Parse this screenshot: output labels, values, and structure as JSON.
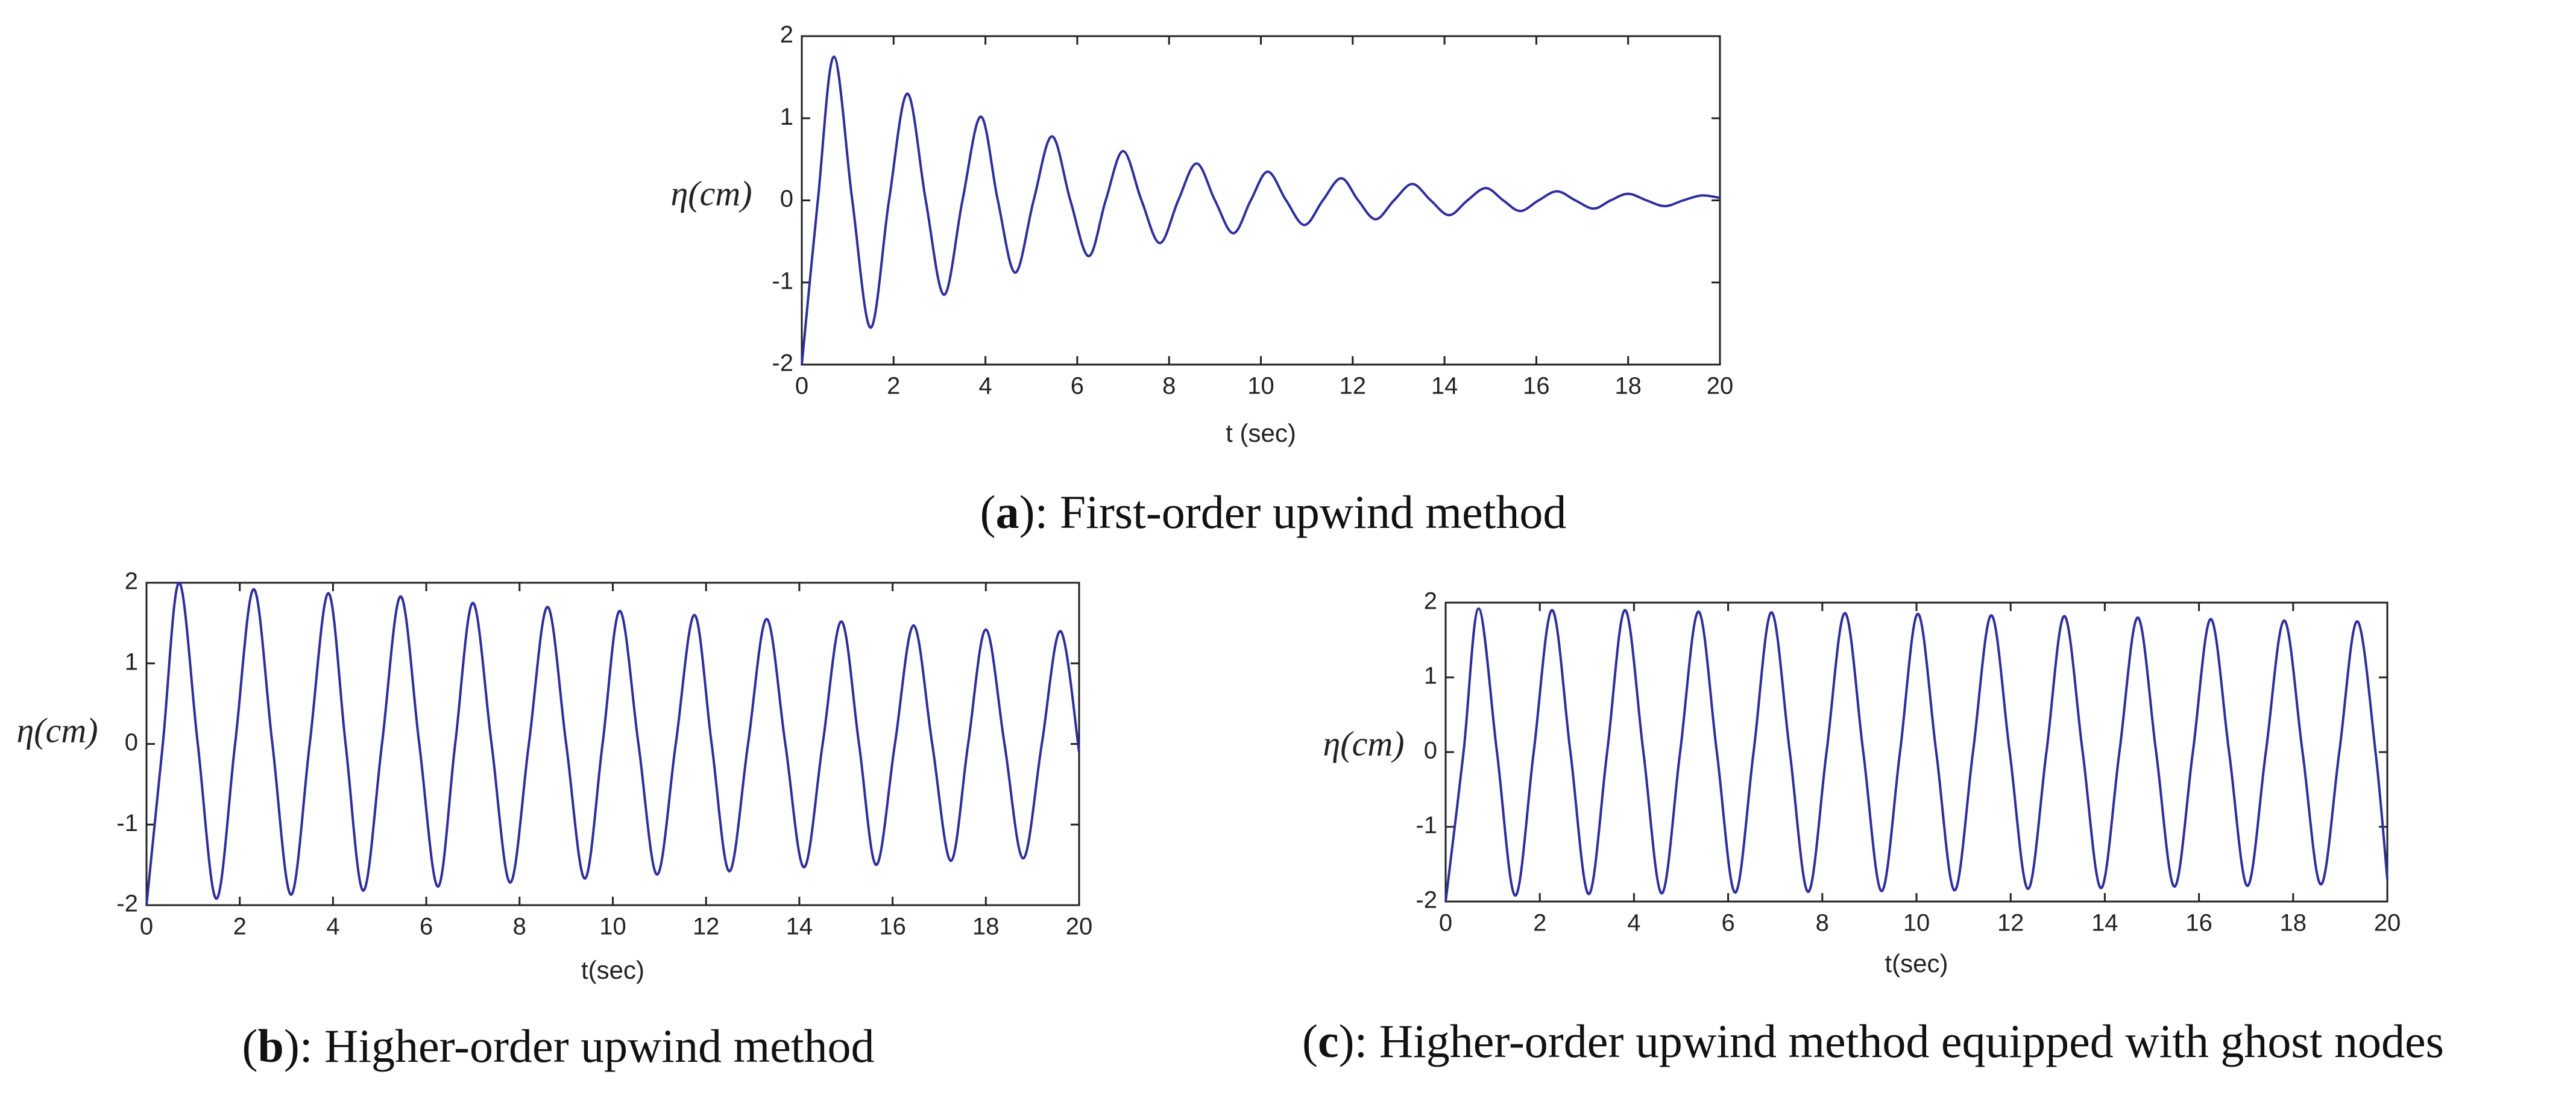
{
  "chart_data": [
    {
      "type": "line",
      "y_label": "η(cm)",
      "x_label": "t (sec)",
      "caption": {
        "open": "(",
        "label": "a",
        "text": "): First-order upwind method"
      },
      "xlim": [
        0,
        20
      ],
      "ylim": [
        -2,
        2
      ],
      "xticks": [
        0,
        2,
        4,
        6,
        8,
        10,
        12,
        14,
        16,
        18,
        20
      ],
      "yticks": [
        -2,
        -1,
        0,
        1,
        2
      ],
      "x": [
        0,
        0.35,
        0.7,
        1.1,
        1.5,
        1.9,
        2.3,
        2.7,
        3.1,
        3.5,
        3.9,
        4.27,
        4.65,
        5.05,
        5.45,
        5.85,
        6.25,
        6.62,
        7.0,
        7.4,
        7.8,
        8.2,
        8.6,
        9.0,
        9.4,
        9.78,
        10.15,
        10.55,
        10.95,
        11.35,
        11.75,
        12.12,
        12.5,
        12.9,
        13.3,
        13.7,
        14.1,
        14.5,
        14.9,
        15.28,
        15.65,
        16.05,
        16.45,
        16.85,
        17.25,
        17.62,
        18.0,
        18.4,
        18.8,
        19.2,
        19.6,
        20
      ],
      "series": [
        {
          "color": "#2e2e9c",
          "values": [
            -2,
            0,
            1.75,
            0,
            -1.55,
            0,
            1.3,
            0,
            -1.15,
            0,
            1.02,
            0,
            -0.88,
            0,
            0.78,
            0,
            -0.68,
            0,
            0.6,
            0,
            -0.52,
            0,
            0.45,
            0,
            -0.4,
            0,
            0.35,
            0,
            -0.3,
            0,
            0.27,
            0,
            -0.23,
            0,
            0.2,
            0,
            -0.18,
            0,
            0.15,
            0,
            -0.13,
            0,
            0.11,
            0,
            -0.1,
            0,
            0.08,
            0,
            -0.07,
            0,
            0.06,
            0.03
          ]
        }
      ]
    },
    {
      "type": "line",
      "y_label": "η(cm)",
      "x_label": "t(sec)",
      "caption": {
        "open": "(",
        "label": "b",
        "text": "): Higher-order upwind method"
      },
      "xlim": [
        0,
        20
      ],
      "ylim": [
        -2,
        2
      ],
      "xticks": [
        0,
        2,
        4,
        6,
        8,
        10,
        12,
        14,
        16,
        18,
        20
      ],
      "yticks": [
        -2,
        -1,
        0,
        1,
        2
      ],
      "x": [
        0,
        0.35,
        0.7,
        1.1,
        1.5,
        1.9,
        2.3,
        2.7,
        3.1,
        3.5,
        3.9,
        4.27,
        4.65,
        5.05,
        5.45,
        5.85,
        6.25,
        6.62,
        7.0,
        7.4,
        7.8,
        8.2,
        8.6,
        9.0,
        9.4,
        9.78,
        10.15,
        10.55,
        10.95,
        11.35,
        11.75,
        12.12,
        12.5,
        12.9,
        13.3,
        13.7,
        14.1,
        14.5,
        14.9,
        15.28,
        15.65,
        16.05,
        16.45,
        16.85,
        17.25,
        17.62,
        18.0,
        18.4,
        18.8,
        19.2,
        19.6,
        20
      ],
      "series": [
        {
          "color": "#2e2e9c",
          "values": [
            -2,
            0,
            2,
            0,
            -1.92,
            0,
            1.92,
            0,
            -1.87,
            0,
            1.87,
            0,
            -1.82,
            0,
            1.83,
            0,
            -1.77,
            0,
            1.75,
            0,
            -1.72,
            0,
            1.7,
            0,
            -1.67,
            0,
            1.65,
            0,
            -1.62,
            0,
            1.6,
            0,
            -1.58,
            0,
            1.55,
            0,
            -1.53,
            0,
            1.52,
            0,
            -1.5,
            0,
            1.47,
            0,
            -1.45,
            0,
            1.42,
            0,
            -1.42,
            0,
            1.4,
            -0.1
          ]
        }
      ]
    },
    {
      "type": "line",
      "y_label": "η(cm)",
      "x_label": "t(sec)",
      "caption": {
        "open": "(",
        "label": "c",
        "text": "): Higher-order upwind method equipped with ghost nodes"
      },
      "xlim": [
        0,
        20
      ],
      "ylim": [
        -2,
        2
      ],
      "xticks": [
        0,
        2,
        4,
        6,
        8,
        10,
        12,
        14,
        16,
        18,
        20
      ],
      "yticks": [
        -2,
        -1,
        0,
        1,
        2
      ],
      "x": [
        0,
        0.38,
        0.7,
        1.09,
        1.48,
        1.87,
        2.26,
        2.65,
        3.04,
        3.43,
        3.81,
        4.2,
        4.59,
        4.98,
        5.37,
        5.76,
        6.15,
        6.54,
        6.92,
        7.31,
        7.7,
        8.09,
        8.48,
        8.87,
        9.26,
        9.65,
        10.03,
        10.42,
        10.81,
        11.2,
        11.59,
        11.98,
        12.37,
        12.76,
        13.14,
        13.53,
        13.92,
        14.31,
        14.7,
        15.09,
        15.48,
        15.87,
        16.25,
        16.64,
        17.03,
        17.42,
        17.81,
        18.2,
        18.59,
        18.98,
        19.36,
        19.75,
        20
      ],
      "series": [
        {
          "color": "#2e2e9c",
          "values": [
            -2,
            0,
            1.92,
            0,
            -1.92,
            0,
            1.9,
            0,
            -1.9,
            0,
            1.9,
            0,
            -1.89,
            0,
            1.88,
            0,
            -1.88,
            0,
            1.87,
            0,
            -1.87,
            0,
            1.86,
            0,
            -1.86,
            0,
            1.85,
            0,
            -1.85,
            0,
            1.83,
            0,
            -1.83,
            0,
            1.82,
            0,
            -1.82,
            0,
            1.8,
            0,
            -1.8,
            0,
            1.78,
            0,
            -1.79,
            0,
            1.76,
            0,
            -1.77,
            0,
            1.75,
            0,
            -1.7
          ]
        }
      ]
    }
  ]
}
